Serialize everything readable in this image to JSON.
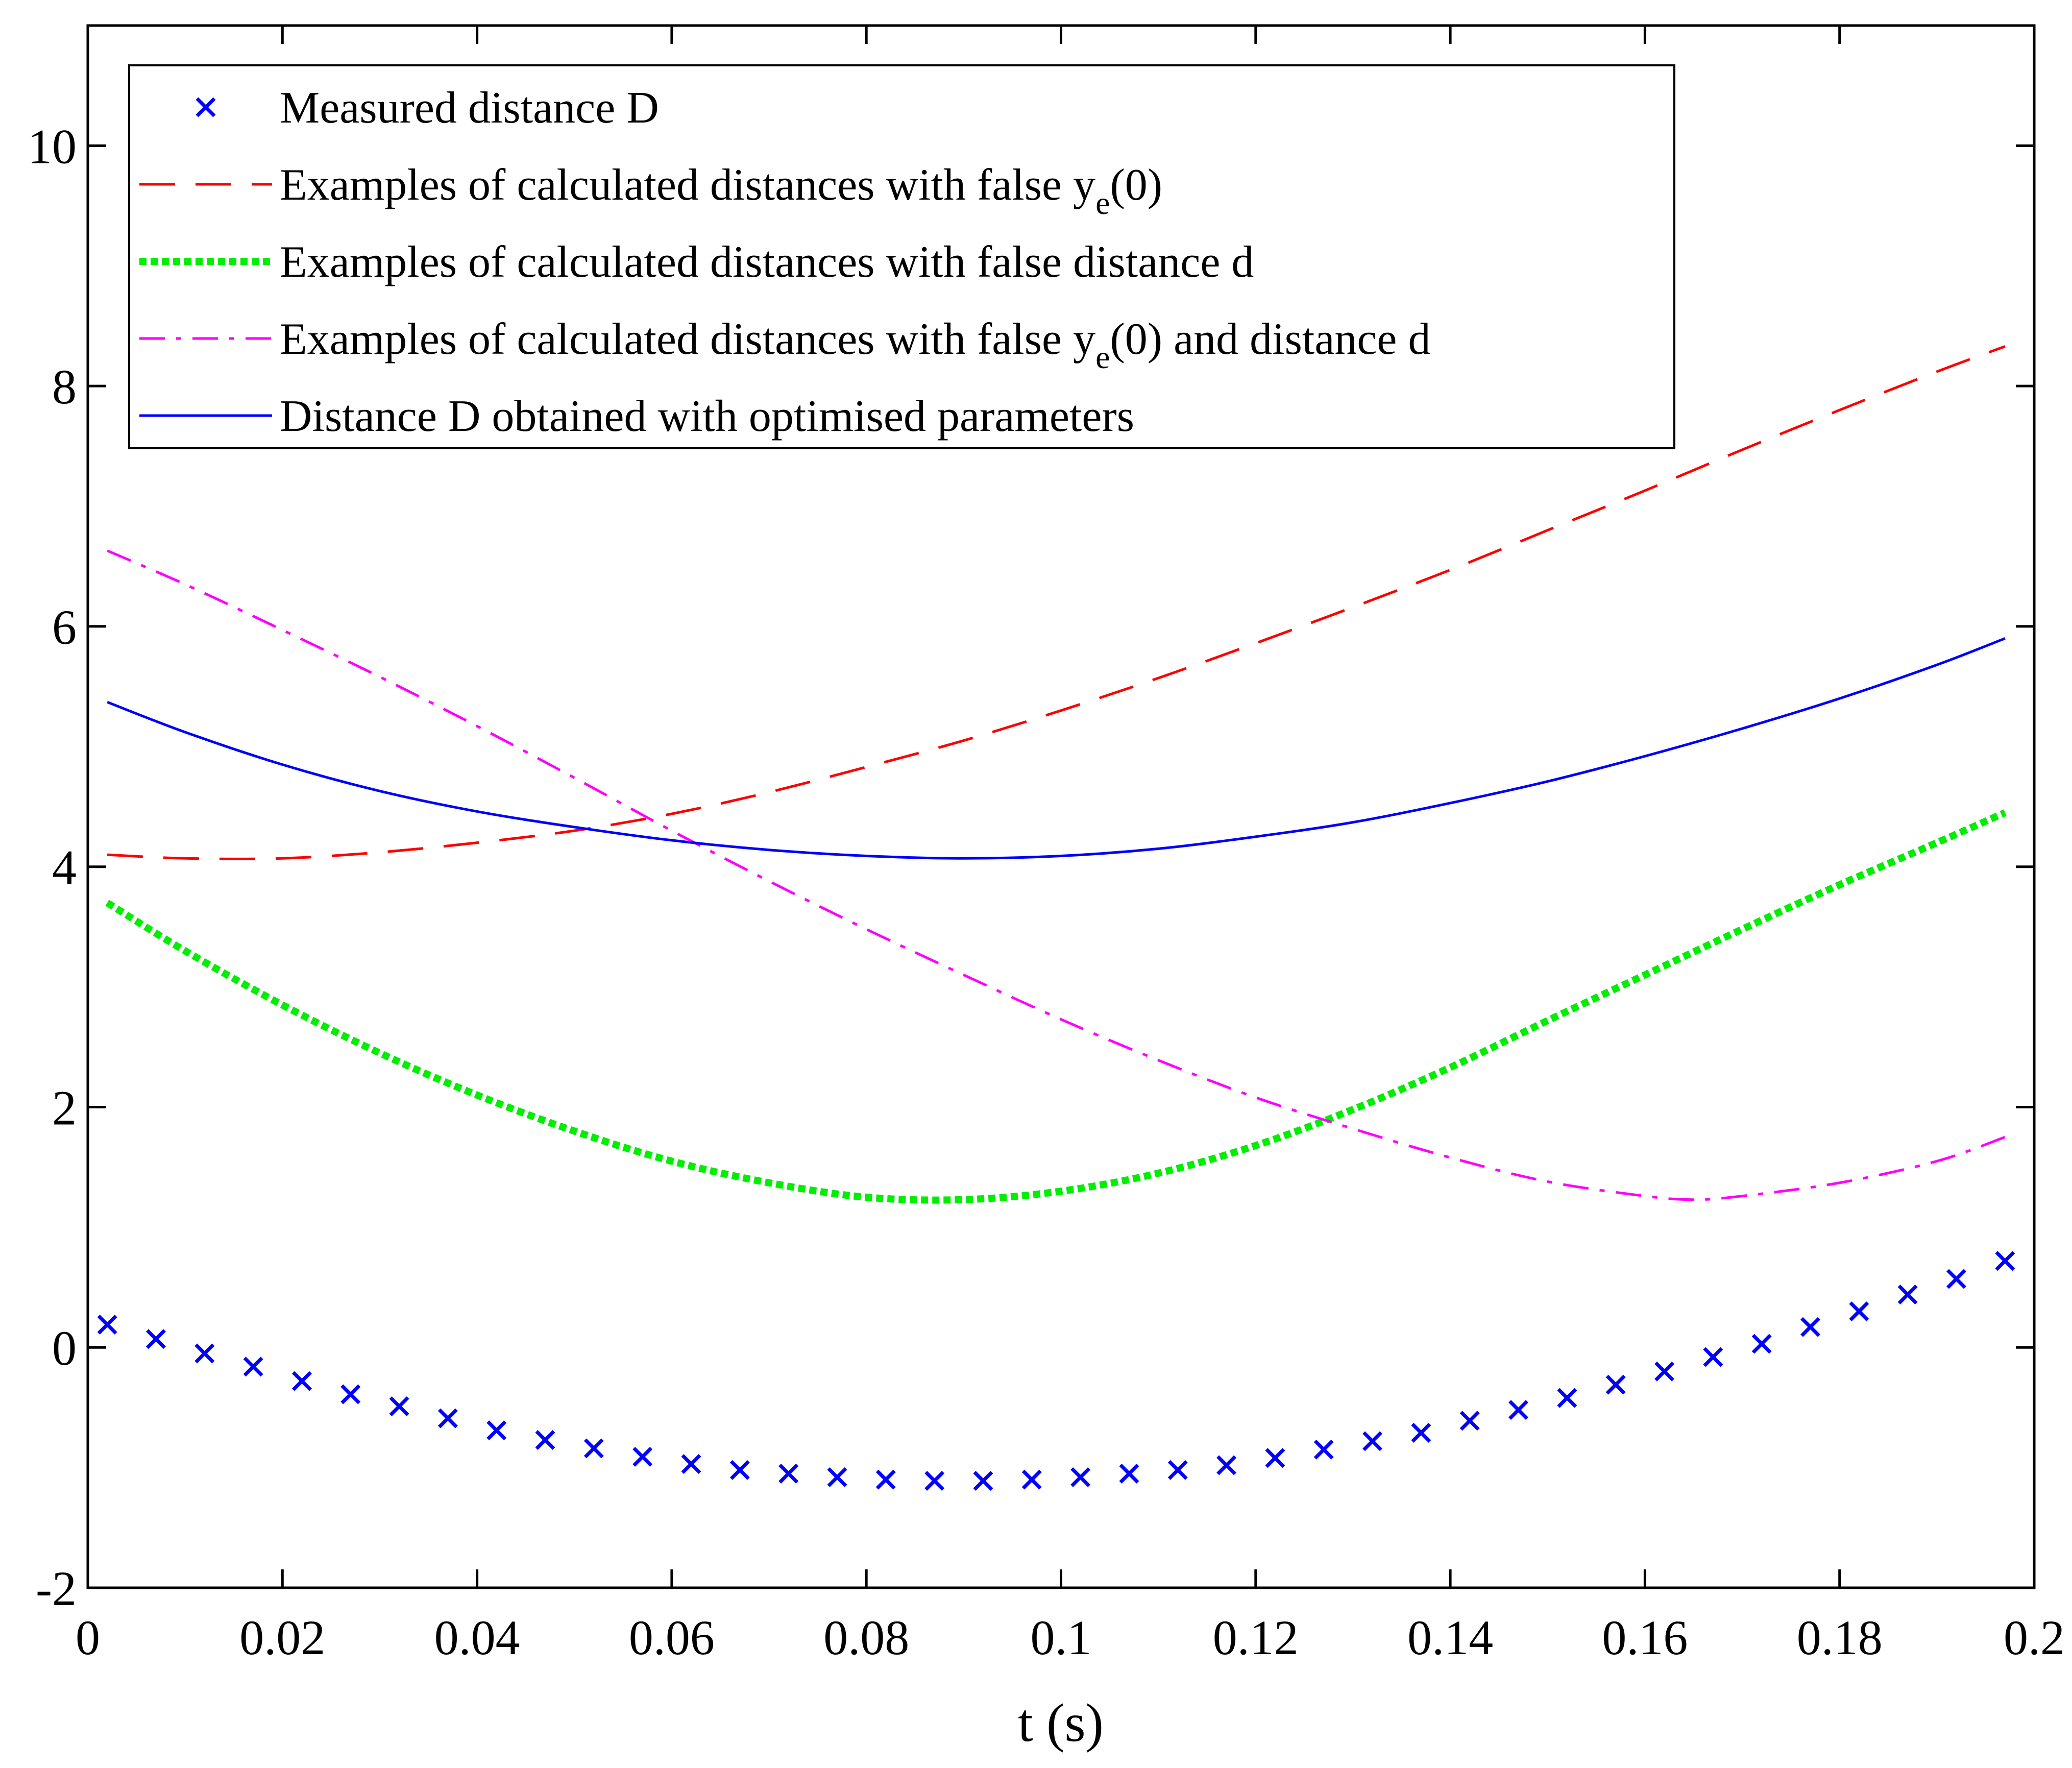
{
  "chart_data": {
    "type": "line",
    "title": "",
    "xlabel": "t (s)",
    "ylabel": "",
    "xlim": [
      0,
      0.2
    ],
    "ylim": [
      -2,
      11
    ],
    "xticks": [
      0,
      0.02,
      0.04,
      0.06,
      0.08,
      0.1,
      0.12,
      0.14,
      0.16,
      0.18,
      0.2
    ],
    "xtick_labels": [
      "0",
      "0.02",
      "0.04",
      "0.06",
      "0.08",
      "0.1",
      "0.12",
      "0.14",
      "0.16",
      "0.18",
      "0.2"
    ],
    "yticks": [
      -2,
      0,
      2,
      4,
      6,
      8,
      10
    ],
    "ytick_labels": [
      "-2",
      "0",
      "2",
      "4",
      "6",
      "8",
      "10"
    ],
    "grid": false,
    "legend_position": "top-left",
    "series": [
      {
        "name": "Measured distance D",
        "kind": "marker",
        "marker": "x",
        "color": "#0000ff",
        "x": [
          0.002,
          0.007,
          0.012,
          0.017,
          0.022,
          0.027,
          0.032,
          0.037,
          0.042,
          0.047,
          0.052,
          0.057,
          0.062,
          0.067,
          0.072,
          0.077,
          0.082,
          0.087,
          0.092,
          0.097,
          0.102,
          0.107,
          0.112,
          0.117,
          0.122,
          0.127,
          0.132,
          0.137,
          0.142,
          0.147,
          0.152,
          0.157,
          0.162,
          0.167,
          0.172,
          0.177,
          0.182,
          0.187,
          0.192,
          0.197
        ],
        "y": [
          0.19,
          0.07,
          -0.05,
          -0.16,
          -0.28,
          -0.39,
          -0.49,
          -0.59,
          -0.69,
          -0.77,
          -0.84,
          -0.91,
          -0.97,
          -1.02,
          -1.05,
          -1.08,
          -1.1,
          -1.11,
          -1.11,
          -1.1,
          -1.08,
          -1.05,
          -1.02,
          -0.98,
          -0.92,
          -0.85,
          -0.78,
          -0.71,
          -0.61,
          -0.52,
          -0.42,
          -0.31,
          -0.2,
          -0.08,
          0.03,
          0.17,
          0.3,
          0.44,
          0.57,
          0.72
        ]
      },
      {
        "name": "Examples of calculated distances with false y_e(0)",
        "label_main": "Examples of calculated distances with false y",
        "label_sub": "e",
        "label_tail": "(0)",
        "kind": "line",
        "dash": "dashed",
        "color": "#ff0000",
        "x": [
          0.002,
          0.01,
          0.02,
          0.03,
          0.04,
          0.05,
          0.06,
          0.07,
          0.08,
          0.09,
          0.1,
          0.11,
          0.12,
          0.13,
          0.14,
          0.15,
          0.16,
          0.17,
          0.18,
          0.19,
          0.197
        ],
        "y": [
          4.1,
          4.07,
          4.07,
          4.12,
          4.2,
          4.3,
          4.44,
          4.62,
          4.83,
          5.05,
          5.3,
          5.57,
          5.86,
          6.16,
          6.47,
          6.8,
          7.13,
          7.47,
          7.8,
          8.12,
          8.33
        ]
      },
      {
        "name": "Examples of calculated distances with false distance d",
        "kind": "line",
        "dash": "dotted",
        "color": "#00ee00",
        "x": [
          0.002,
          0.01,
          0.02,
          0.03,
          0.04,
          0.05,
          0.06,
          0.07,
          0.08,
          0.09,
          0.1,
          0.11,
          0.12,
          0.13,
          0.14,
          0.15,
          0.16,
          0.17,
          0.18,
          0.19,
          0.197
        ],
        "y": [
          3.7,
          3.3,
          2.85,
          2.45,
          2.1,
          1.8,
          1.55,
          1.37,
          1.25,
          1.23,
          1.3,
          1.45,
          1.68,
          1.98,
          2.33,
          2.72,
          3.1,
          3.48,
          3.85,
          4.2,
          4.45
        ]
      },
      {
        "name": "Examples of calculated distances with false y_e(0) and distance d",
        "label_main": "Examples of calculated distances with false y",
        "label_sub": "e",
        "label_tail": "(0) and distance d",
        "kind": "line",
        "dash": "dashdot",
        "color": "#ff00ff",
        "x": [
          0.002,
          0.01,
          0.02,
          0.03,
          0.04,
          0.05,
          0.06,
          0.07,
          0.08,
          0.09,
          0.1,
          0.11,
          0.12,
          0.13,
          0.14,
          0.15,
          0.16,
          0.165,
          0.17,
          0.18,
          0.19,
          0.197
        ],
        "y": [
          6.63,
          6.35,
          5.97,
          5.58,
          5.17,
          4.74,
          4.3,
          3.88,
          3.48,
          3.1,
          2.73,
          2.39,
          2.08,
          1.82,
          1.58,
          1.38,
          1.26,
          1.23,
          1.26,
          1.37,
          1.55,
          1.75
        ]
      },
      {
        "name": "Distance D obtained with optimised parameters",
        "kind": "line",
        "dash": "solid",
        "color": "#0000ff",
        "x": [
          0.002,
          0.01,
          0.02,
          0.03,
          0.04,
          0.05,
          0.06,
          0.07,
          0.08,
          0.09,
          0.1,
          0.11,
          0.12,
          0.13,
          0.14,
          0.15,
          0.16,
          0.17,
          0.18,
          0.19,
          0.197
        ],
        "y": [
          5.37,
          5.12,
          4.85,
          4.63,
          4.46,
          4.33,
          4.22,
          4.14,
          4.09,
          4.07,
          4.09,
          4.15,
          4.25,
          4.37,
          4.53,
          4.71,
          4.92,
          5.15,
          5.4,
          5.68,
          5.9
        ]
      }
    ]
  }
}
